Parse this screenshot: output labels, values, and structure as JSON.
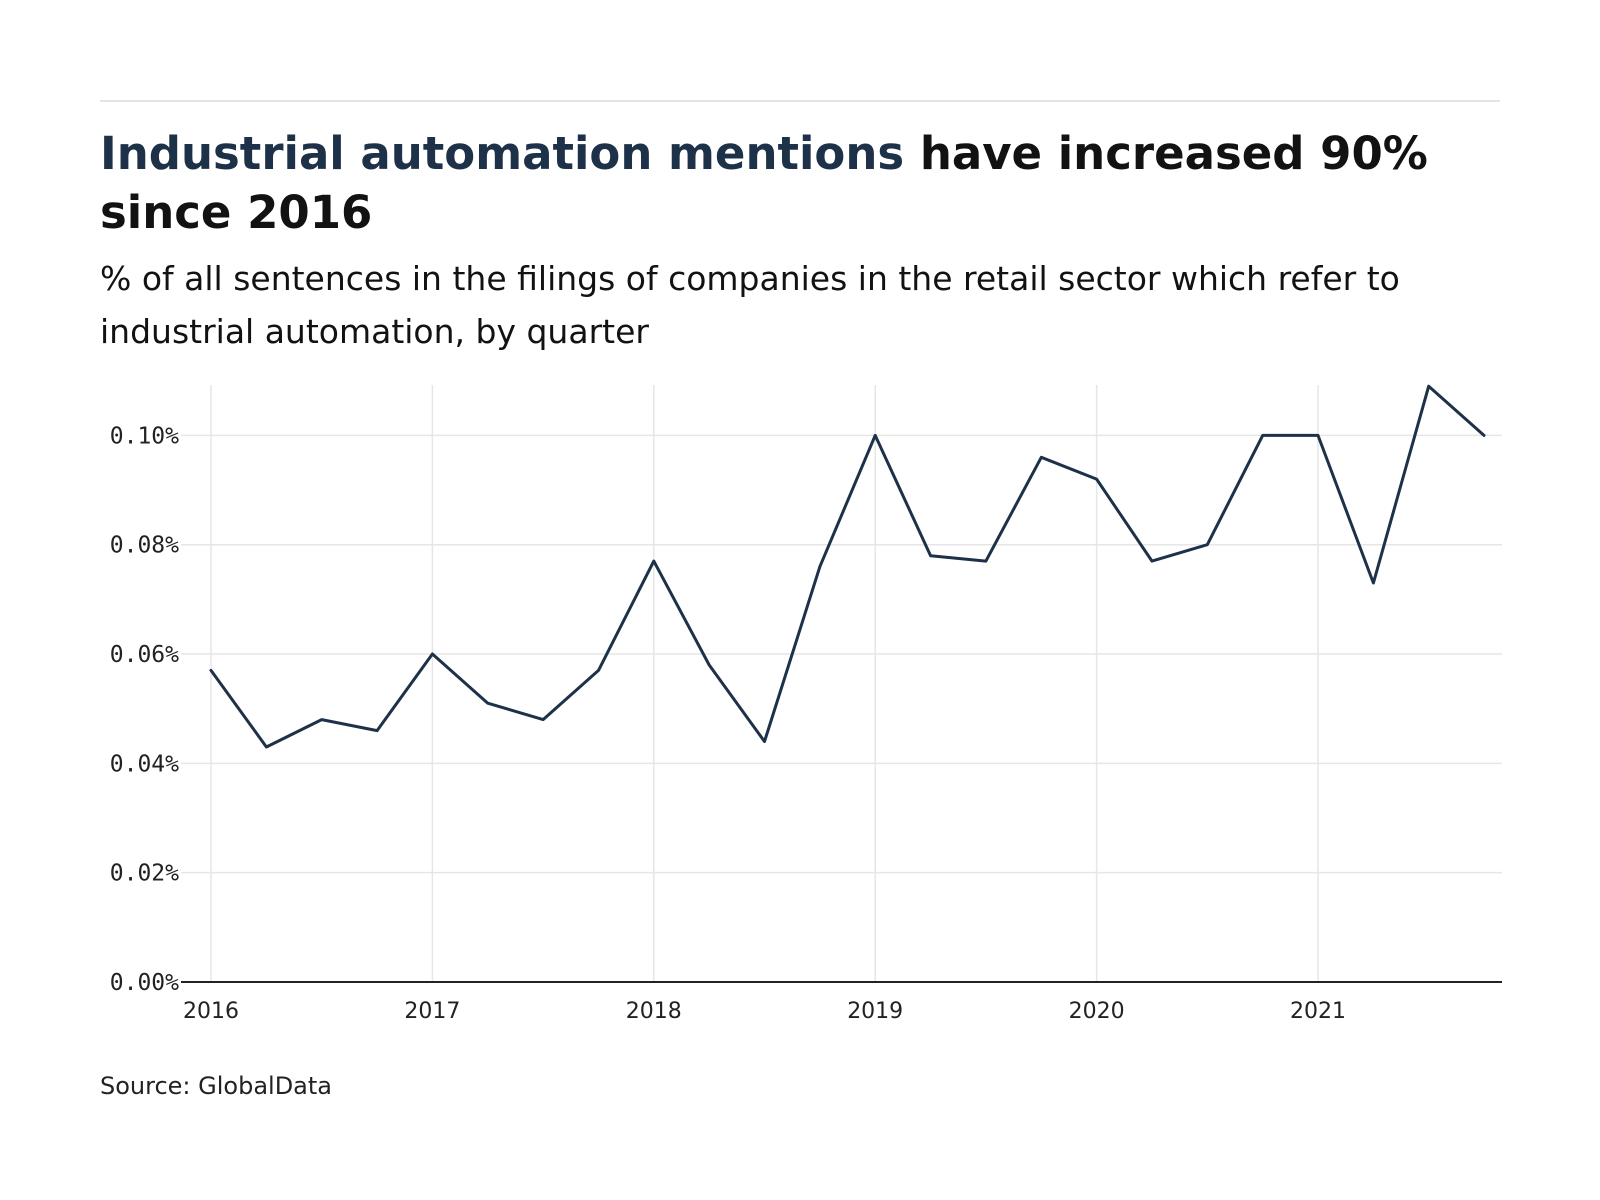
{
  "header": {
    "title_highlight": "Industrial automation mentions",
    "title_rest": " have increased 90% since 2016",
    "subtitle": "% of all sentences in the filings of companies in the retail sector which refer to industrial automation, by quarter"
  },
  "footer": {
    "source": "Source: GlobalData"
  },
  "colors": {
    "line": "#1d3148",
    "grid": "#e6e6e6",
    "axis": "#222222",
    "highlight": "#1d3148"
  },
  "chart_data": {
    "type": "line",
    "title": "Industrial automation mentions have increased 90% since 2016",
    "subtitle": "% of all sentences in the filings of companies in the retail sector which refer to industrial automation, by quarter",
    "xlabel": "",
    "ylabel": "",
    "x": [
      "2016 Q1",
      "2016 Q2",
      "2016 Q3",
      "2016 Q4",
      "2017 Q1",
      "2017 Q2",
      "2017 Q3",
      "2017 Q4",
      "2018 Q1",
      "2018 Q2",
      "2018 Q3",
      "2018 Q4",
      "2019 Q1",
      "2019 Q2",
      "2019 Q3",
      "2019 Q4",
      "2020 Q1",
      "2020 Q2",
      "2020 Q3",
      "2020 Q4",
      "2021 Q1",
      "2021 Q2",
      "2021 Q3",
      "2021 Q4"
    ],
    "series": [
      {
        "values": [
          0.057,
          0.043,
          0.048,
          0.046,
          0.06,
          0.051,
          0.048,
          0.057,
          0.077,
          0.058,
          0.044,
          0.076,
          0.1,
          0.078,
          0.077,
          0.096,
          0.092,
          0.077,
          0.08,
          0.1,
          0.1,
          0.073,
          0.109,
          0.1
        ]
      }
    ],
    "xticks": [
      "2016",
      "2017",
      "2018",
      "2019",
      "2020",
      "2021"
    ],
    "yticks": [
      "0.00%",
      "0.02%",
      "0.04%",
      "0.06%",
      "0.08%",
      "0.10%"
    ],
    "ytick_values": [
      0,
      0.02,
      0.04,
      0.06,
      0.08,
      0.1
    ],
    "ylim": [
      0,
      0.109
    ],
    "grid": true,
    "legend": "none"
  }
}
